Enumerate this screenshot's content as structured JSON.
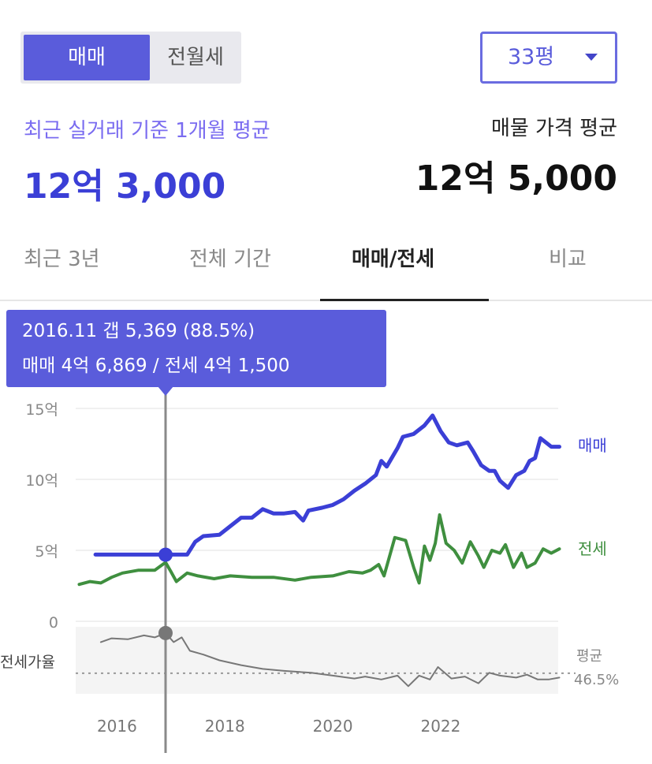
{
  "toggle": {
    "sale": "매매",
    "rent": "전월세",
    "selected": "sale"
  },
  "size_select": {
    "value": "33평"
  },
  "summary": {
    "recent_label": "최근 실거래 기준 1개월 평균",
    "recent_price": "12억 3,000",
    "listing_label": "매물 가격 평균",
    "listing_price": "12억 5,000"
  },
  "tabs": [
    {
      "label": "최근 3년",
      "active": false
    },
    {
      "label": "전체 기간",
      "active": false
    },
    {
      "label": "매매/전세",
      "active": true
    },
    {
      "label": "비교",
      "active": false
    }
  ],
  "tooltip": {
    "line1": "2016.11  갭 5,369 (88.5%)",
    "line2": "매매 4억 6,869 / 전세 4억 1,500"
  },
  "colors": {
    "accent": "#5a5cdb",
    "sale": "#3b3fd6",
    "jeonse": "#3f8f3f",
    "ratio": "#777777"
  },
  "chart_data": {
    "type": "line",
    "ylim": [
      0,
      15
    ],
    "y_ticks": [
      "0",
      "5억",
      "10억",
      "15억"
    ],
    "x_ticks": [
      "2016",
      "2018",
      "2020",
      "2022"
    ],
    "series": [
      {
        "name": "매매",
        "points": [
          [
            2015.6,
            4.7
          ],
          [
            2016.0,
            4.7
          ],
          [
            2016.5,
            4.7
          ],
          [
            2016.9,
            4.7
          ],
          [
            2017.0,
            4.7
          ],
          [
            2017.3,
            4.7
          ],
          [
            2017.45,
            5.6
          ],
          [
            2017.6,
            6.0
          ],
          [
            2017.9,
            6.1
          ],
          [
            2018.1,
            6.7
          ],
          [
            2018.3,
            7.3
          ],
          [
            2018.5,
            7.3
          ],
          [
            2018.7,
            7.9
          ],
          [
            2018.9,
            7.6
          ],
          [
            2019.1,
            7.6
          ],
          [
            2019.3,
            7.7
          ],
          [
            2019.45,
            7.1
          ],
          [
            2019.55,
            7.8
          ],
          [
            2019.8,
            8.0
          ],
          [
            2020.0,
            8.2
          ],
          [
            2020.2,
            8.6
          ],
          [
            2020.4,
            9.2
          ],
          [
            2020.6,
            9.7
          ],
          [
            2020.8,
            10.3
          ],
          [
            2020.9,
            11.3
          ],
          [
            2021.0,
            10.9
          ],
          [
            2021.2,
            12.2
          ],
          [
            2021.3,
            13.0
          ],
          [
            2021.5,
            13.2
          ],
          [
            2021.7,
            13.8
          ],
          [
            2021.85,
            14.5
          ],
          [
            2022.0,
            13.4
          ],
          [
            2022.15,
            12.6
          ],
          [
            2022.3,
            12.4
          ],
          [
            2022.5,
            12.6
          ],
          [
            2022.6,
            12.0
          ],
          [
            2022.75,
            11.0
          ],
          [
            2022.9,
            10.6
          ],
          [
            2023.0,
            10.6
          ],
          [
            2023.1,
            9.9
          ],
          [
            2023.25,
            9.4
          ],
          [
            2023.4,
            10.3
          ],
          [
            2023.55,
            10.6
          ],
          [
            2023.65,
            11.3
          ],
          [
            2023.75,
            11.5
          ],
          [
            2023.85,
            12.9
          ],
          [
            2023.95,
            12.6
          ],
          [
            2024.05,
            12.3
          ],
          [
            2024.2,
            12.3
          ]
        ]
      },
      {
        "name": "전세",
        "points": [
          [
            2015.3,
            2.6
          ],
          [
            2015.5,
            2.8
          ],
          [
            2015.7,
            2.7
          ],
          [
            2015.9,
            3.1
          ],
          [
            2016.1,
            3.4
          ],
          [
            2016.4,
            3.6
          ],
          [
            2016.7,
            3.6
          ],
          [
            2016.9,
            4.15
          ],
          [
            2017.0,
            3.5
          ],
          [
            2017.1,
            2.8
          ],
          [
            2017.3,
            3.4
          ],
          [
            2017.5,
            3.2
          ],
          [
            2017.8,
            3.0
          ],
          [
            2018.1,
            3.2
          ],
          [
            2018.5,
            3.1
          ],
          [
            2018.9,
            3.1
          ],
          [
            2019.3,
            2.9
          ],
          [
            2019.6,
            3.1
          ],
          [
            2020.0,
            3.2
          ],
          [
            2020.3,
            3.5
          ],
          [
            2020.55,
            3.4
          ],
          [
            2020.7,
            3.6
          ],
          [
            2020.85,
            4.0
          ],
          [
            2020.95,
            3.2
          ],
          [
            2021.15,
            5.9
          ],
          [
            2021.35,
            5.7
          ],
          [
            2021.5,
            3.8
          ],
          [
            2021.6,
            2.7
          ],
          [
            2021.7,
            5.3
          ],
          [
            2021.8,
            4.3
          ],
          [
            2021.9,
            5.5
          ],
          [
            2021.98,
            7.5
          ],
          [
            2022.1,
            5.5
          ],
          [
            2022.25,
            5.0
          ],
          [
            2022.4,
            4.1
          ],
          [
            2022.55,
            5.6
          ],
          [
            2022.7,
            4.6
          ],
          [
            2022.8,
            3.8
          ],
          [
            2022.95,
            5.0
          ],
          [
            2023.1,
            4.8
          ],
          [
            2023.2,
            5.4
          ],
          [
            2023.35,
            3.8
          ],
          [
            2023.5,
            4.8
          ],
          [
            2023.6,
            3.8
          ],
          [
            2023.75,
            4.1
          ],
          [
            2023.9,
            5.1
          ],
          [
            2024.05,
            4.8
          ],
          [
            2024.2,
            5.1
          ]
        ]
      }
    ],
    "ratio_series": {
      "label": "전세가율",
      "average_label": "평균",
      "average_value": "46.5%",
      "points": [
        [
          2015.7,
          79
        ],
        [
          2015.9,
          83
        ],
        [
          2016.2,
          82
        ],
        [
          2016.5,
          86
        ],
        [
          2016.7,
          84
        ],
        [
          2016.9,
          88.5
        ],
        [
          2017.05,
          79
        ],
        [
          2017.2,
          84
        ],
        [
          2017.35,
          70
        ],
        [
          2017.6,
          66
        ],
        [
          2017.9,
          60
        ],
        [
          2018.3,
          55
        ],
        [
          2018.7,
          51
        ],
        [
          2019.1,
          49
        ],
        [
          2019.6,
          47
        ],
        [
          2020.0,
          44
        ],
        [
          2020.4,
          41
        ],
        [
          2020.6,
          43
        ],
        [
          2020.9,
          40
        ],
        [
          2021.2,
          44
        ],
        [
          2021.4,
          33
        ],
        [
          2021.6,
          44
        ],
        [
          2021.8,
          40
        ],
        [
          2021.95,
          53
        ],
        [
          2022.2,
          41
        ],
        [
          2022.45,
          43
        ],
        [
          2022.7,
          36
        ],
        [
          2022.9,
          47
        ],
        [
          2023.1,
          44
        ],
        [
          2023.4,
          42
        ],
        [
          2023.6,
          45
        ],
        [
          2023.8,
          40
        ],
        [
          2024.0,
          40
        ],
        [
          2024.2,
          42
        ]
      ]
    },
    "highlight": {
      "x": 2016.9,
      "sale": 4.69,
      "ratio": 88.5
    },
    "grid": true
  }
}
